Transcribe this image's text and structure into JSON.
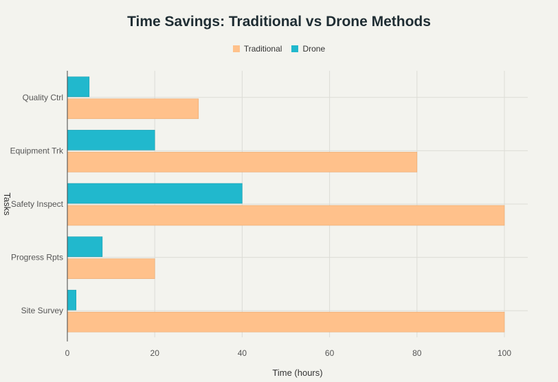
{
  "chart_data": {
    "type": "bar",
    "orientation": "horizontal",
    "title": "Time Savings: Traditional vs Drone Methods",
    "xlabel": "Time (hours)",
    "ylabel": "Tasks",
    "xlim": [
      0,
      105
    ],
    "xticks": [
      0,
      20,
      40,
      60,
      80,
      100
    ],
    "grid": true,
    "legend_position": "top-center",
    "categories": [
      "Quality Ctrl",
      "Equipment Trk",
      "Safety Inspect",
      "Progress Rpts",
      "Site Survey"
    ],
    "series": [
      {
        "name": "Traditional",
        "color": "#ffc18b",
        "values": [
          30,
          80,
          100,
          20,
          100
        ]
      },
      {
        "name": "Drone",
        "color": "#21b8cd",
        "values": [
          5,
          20,
          40,
          8,
          2
        ]
      }
    ]
  }
}
